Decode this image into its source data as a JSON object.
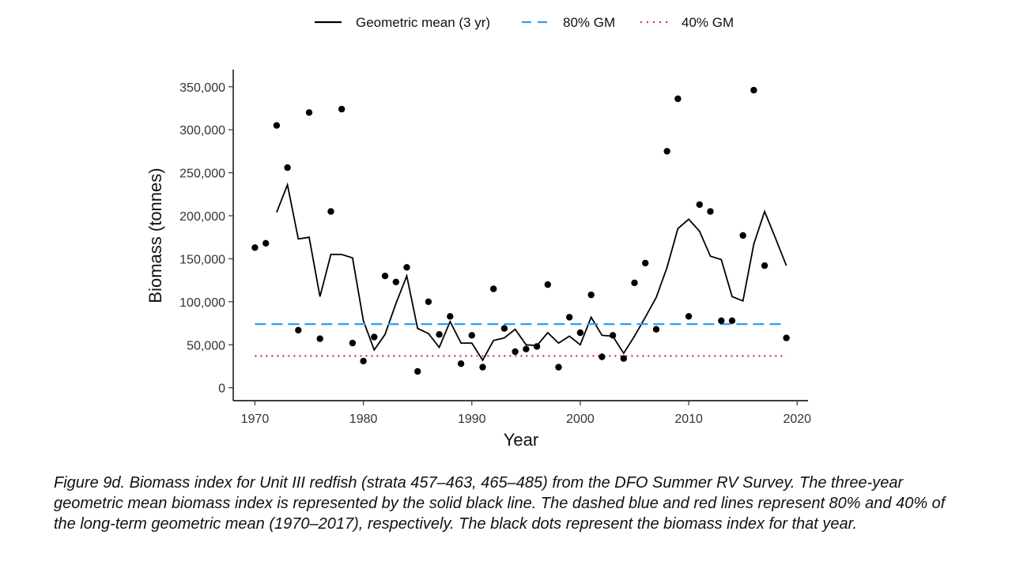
{
  "chart_data": {
    "type": "line",
    "title": "",
    "xlabel": "Year",
    "ylabel": "Biomass (tonnes)",
    "xlim": [
      1968,
      2021
    ],
    "ylim": [
      -15000,
      370000
    ],
    "x_ticks": [
      1970,
      1980,
      1990,
      2000,
      2010,
      2020
    ],
    "x_tick_labels": [
      "1970",
      "1980",
      "1990",
      "2000",
      "2010",
      "2020"
    ],
    "y_ticks": [
      0,
      50000,
      100000,
      150000,
      200000,
      250000,
      300000,
      350000
    ],
    "y_tick_labels": [
      "0",
      "50,000",
      "100,000",
      "150,000",
      "200,000",
      "250,000",
      "300,000",
      "350,000"
    ],
    "grid": false,
    "legend": {
      "position": "top",
      "entries": [
        {
          "label": "Geometric mean (3 yr)",
          "style": "solid",
          "color": "#000000"
        },
        {
          "label": "80% GM",
          "style": "dashed",
          "color": "#3a9ae8"
        },
        {
          "label": "40% GM",
          "style": "dotted",
          "color": "#e03030"
        }
      ]
    },
    "series": [
      {
        "name": "Geometric mean (3 yr)",
        "style": "solid",
        "color": "#000000",
        "x": [
          1972,
          1973,
          1974,
          1975,
          1976,
          1977,
          1978,
          1979,
          1980,
          1981,
          1982,
          1983,
          1984,
          1985,
          1986,
          1987,
          1988,
          1989,
          1990,
          1991,
          1992,
          1993,
          1994,
          1995,
          1996,
          1997,
          1998,
          1999,
          2000,
          2001,
          2002,
          2003,
          2004,
          2005,
          2006,
          2007,
          2008,
          2009,
          2010,
          2011,
          2012,
          2013,
          2014,
          2015,
          2016,
          2017,
          2018,
          2019
        ],
        "y": [
          204000,
          236000,
          173000,
          175000,
          106000,
          155000,
          155000,
          151000,
          78000,
          44000,
          62000,
          98000,
          130000,
          69000,
          63000,
          47000,
          77000,
          52000,
          52000,
          32000,
          55000,
          58000,
          68000,
          50000,
          49000,
          64000,
          52000,
          60000,
          50000,
          82000,
          61000,
          60000,
          40000,
          60000,
          82000,
          105000,
          140000,
          185000,
          196000,
          182000,
          153000,
          149000,
          106000,
          101000,
          167000,
          205000,
          174000,
          142000
        ]
      },
      {
        "name": "Biomass index",
        "style": "points",
        "color": "#000000",
        "x": [
          1970,
          1971,
          1972,
          1973,
          1974,
          1975,
          1976,
          1977,
          1978,
          1979,
          1980,
          1981,
          1982,
          1983,
          1984,
          1985,
          1986,
          1987,
          1988,
          1989,
          1990,
          1991,
          1992,
          1993,
          1994,
          1995,
          1996,
          1997,
          1998,
          1999,
          2000,
          2001,
          2002,
          2003,
          2004,
          2005,
          2006,
          2007,
          2008,
          2009,
          2010,
          2011,
          2012,
          2013,
          2014,
          2015,
          2016,
          2017,
          2019
        ],
        "y": [
          163000,
          168000,
          305000,
          256000,
          67000,
          320000,
          57000,
          205000,
          324000,
          52000,
          31000,
          59000,
          130000,
          123000,
          140000,
          19000,
          100000,
          62000,
          83000,
          28000,
          61000,
          24000,
          115000,
          69000,
          42000,
          45000,
          48000,
          120000,
          24000,
          82000,
          64000,
          108000,
          36000,
          61000,
          34000,
          122000,
          145000,
          68000,
          275000,
          336000,
          83000,
          213000,
          205000,
          78000,
          78000,
          177000,
          346000,
          142000,
          58000
        ]
      },
      {
        "name": "80% GM",
        "style": "dashed",
        "color": "#3a9ae8",
        "x": [
          1970,
          2019
        ],
        "y": [
          74000,
          74000
        ]
      },
      {
        "name": "40% GM",
        "style": "dotted",
        "color": "#e03030",
        "x": [
          1970,
          2019
        ],
        "y": [
          37000,
          37000
        ]
      }
    ]
  },
  "caption": "Figure 9d. Biomass index for Unit III redfish (strata 457–463, 465–485) from the DFO Summer RV Survey. The three-year geometric mean biomass index is represented by the solid black line. The dashed blue and red lines represent 80% and 40% of the long-term geometric mean (1970–2017), respectively. The black dots represent the biomass index for that year."
}
